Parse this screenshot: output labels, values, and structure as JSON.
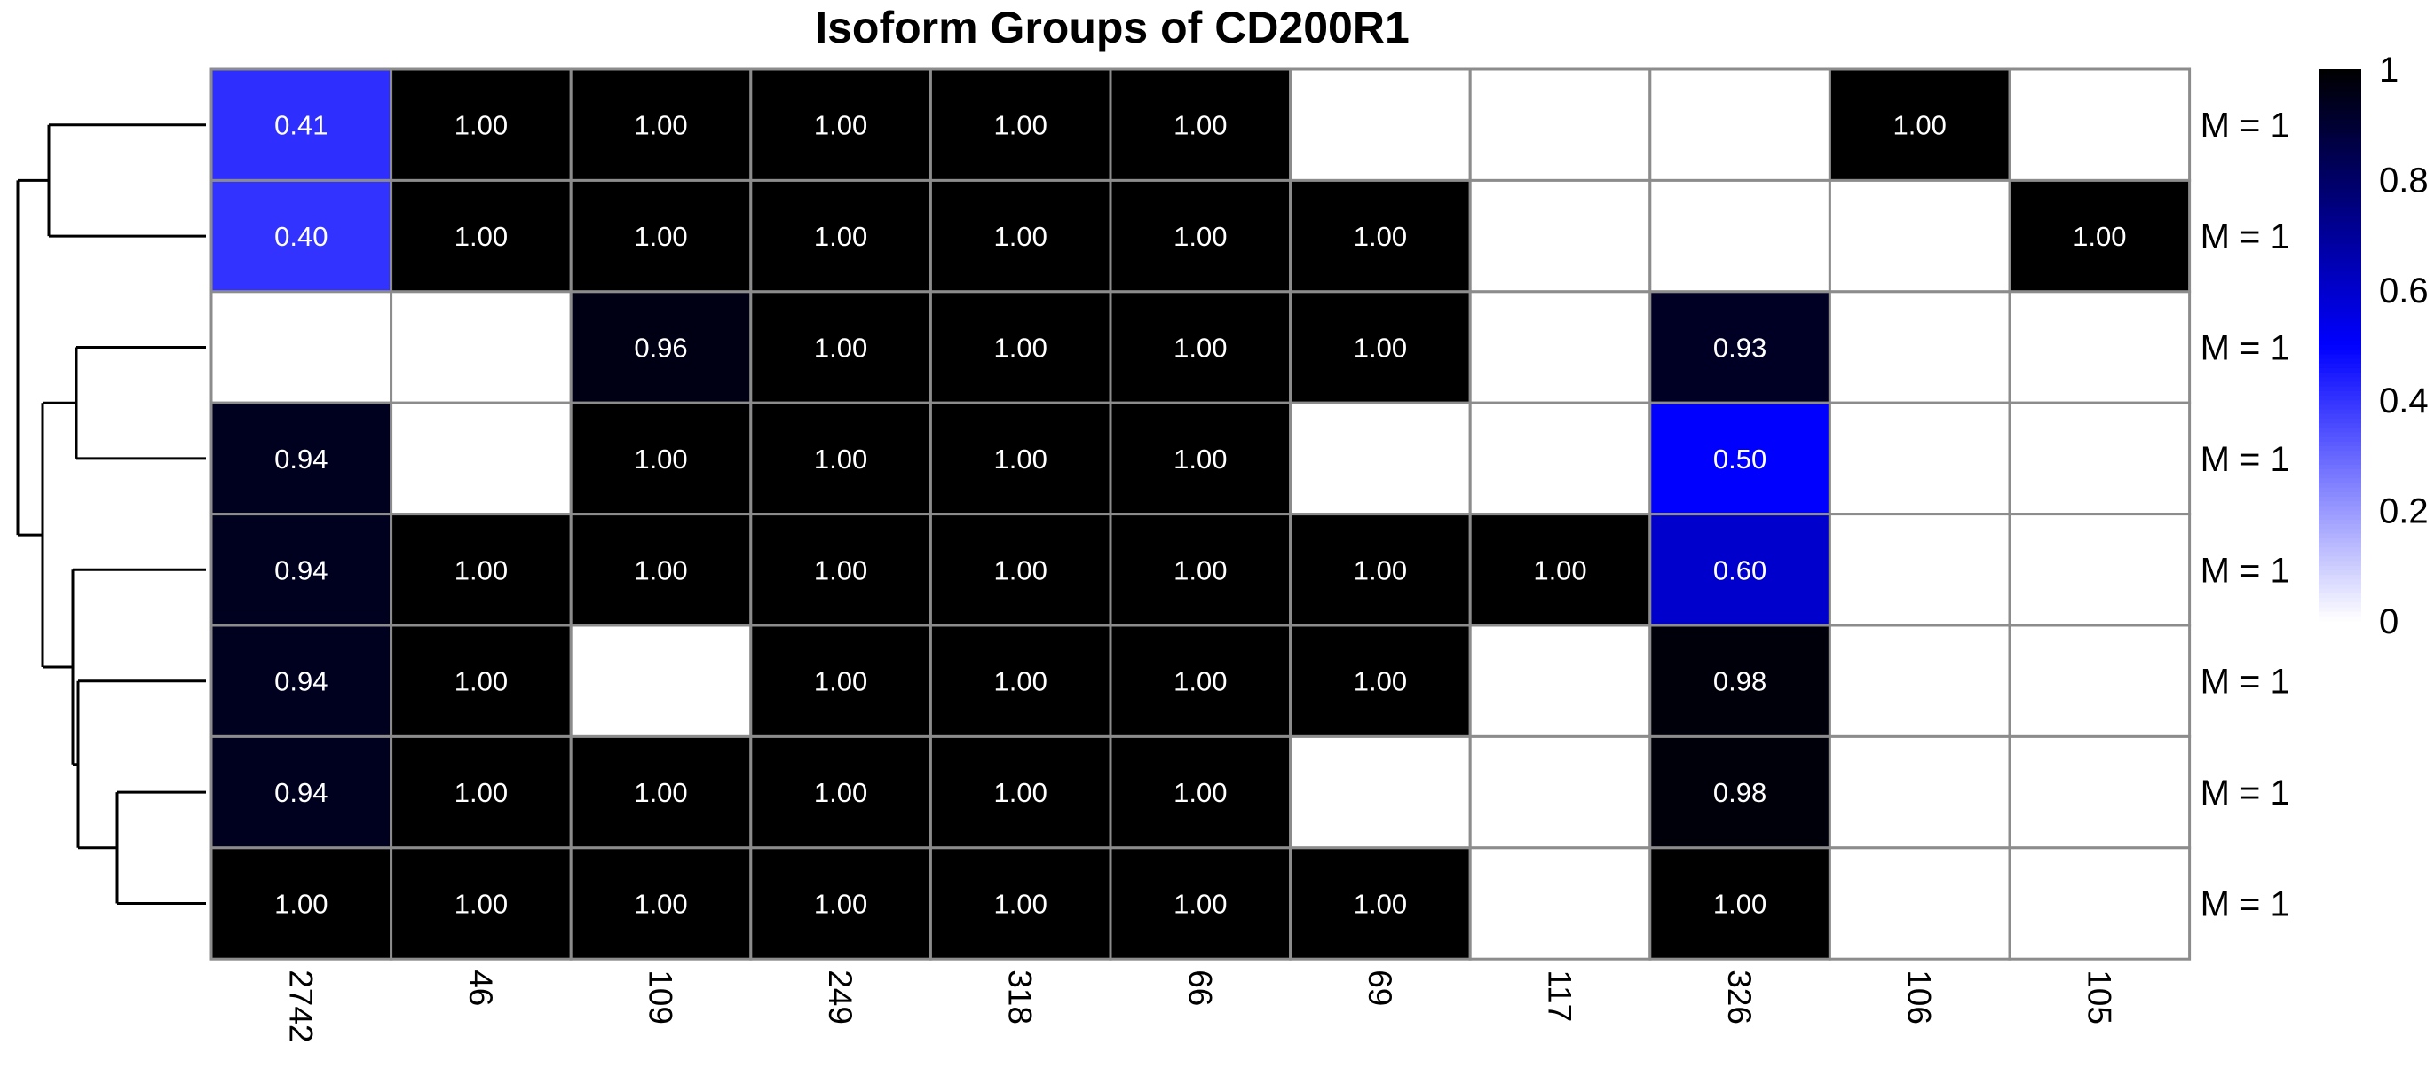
{
  "chart_data": {
    "type": "heatmap",
    "title": "Isoform Groups of CD200R1",
    "columns": [
      "2742",
      "46",
      "109",
      "249",
      "318",
      "66",
      "69",
      "117",
      "326",
      "106",
      "105"
    ],
    "rows": [
      "M = 1",
      "M = 1",
      "M = 1",
      "M = 1",
      "M = 1",
      "M = 1",
      "M = 1",
      "M = 1"
    ],
    "values": [
      [
        0.41,
        1.0,
        1.0,
        1.0,
        1.0,
        1.0,
        null,
        null,
        null,
        1.0,
        null
      ],
      [
        0.4,
        1.0,
        1.0,
        1.0,
        1.0,
        1.0,
        1.0,
        null,
        null,
        null,
        1.0
      ],
      [
        null,
        null,
        0.96,
        1.0,
        1.0,
        1.0,
        1.0,
        null,
        0.93,
        null,
        null
      ],
      [
        0.94,
        null,
        1.0,
        1.0,
        1.0,
        1.0,
        null,
        null,
        0.5,
        null,
        null
      ],
      [
        0.94,
        1.0,
        1.0,
        1.0,
        1.0,
        1.0,
        1.0,
        1.0,
        0.6,
        null,
        null
      ],
      [
        0.94,
        1.0,
        null,
        1.0,
        1.0,
        1.0,
        1.0,
        null,
        0.98,
        null,
        null
      ],
      [
        0.94,
        1.0,
        1.0,
        1.0,
        1.0,
        1.0,
        null,
        null,
        0.98,
        null,
        null
      ],
      [
        1.0,
        1.0,
        1.0,
        1.0,
        1.0,
        1.0,
        1.0,
        null,
        1.0,
        null,
        null
      ]
    ],
    "value_range": [
      0,
      1
    ],
    "colors": {
      "low": "#ffffff",
      "mid": "#0000ff",
      "high": "#000000",
      "grid": "#8c8c8c",
      "empty": "#ffffff"
    },
    "legend": {
      "position": "right",
      "ticks": [
        "1",
        "0.8",
        "0.6",
        "0.4",
        "0.2",
        "0"
      ]
    },
    "row_dendrogram": true
  }
}
